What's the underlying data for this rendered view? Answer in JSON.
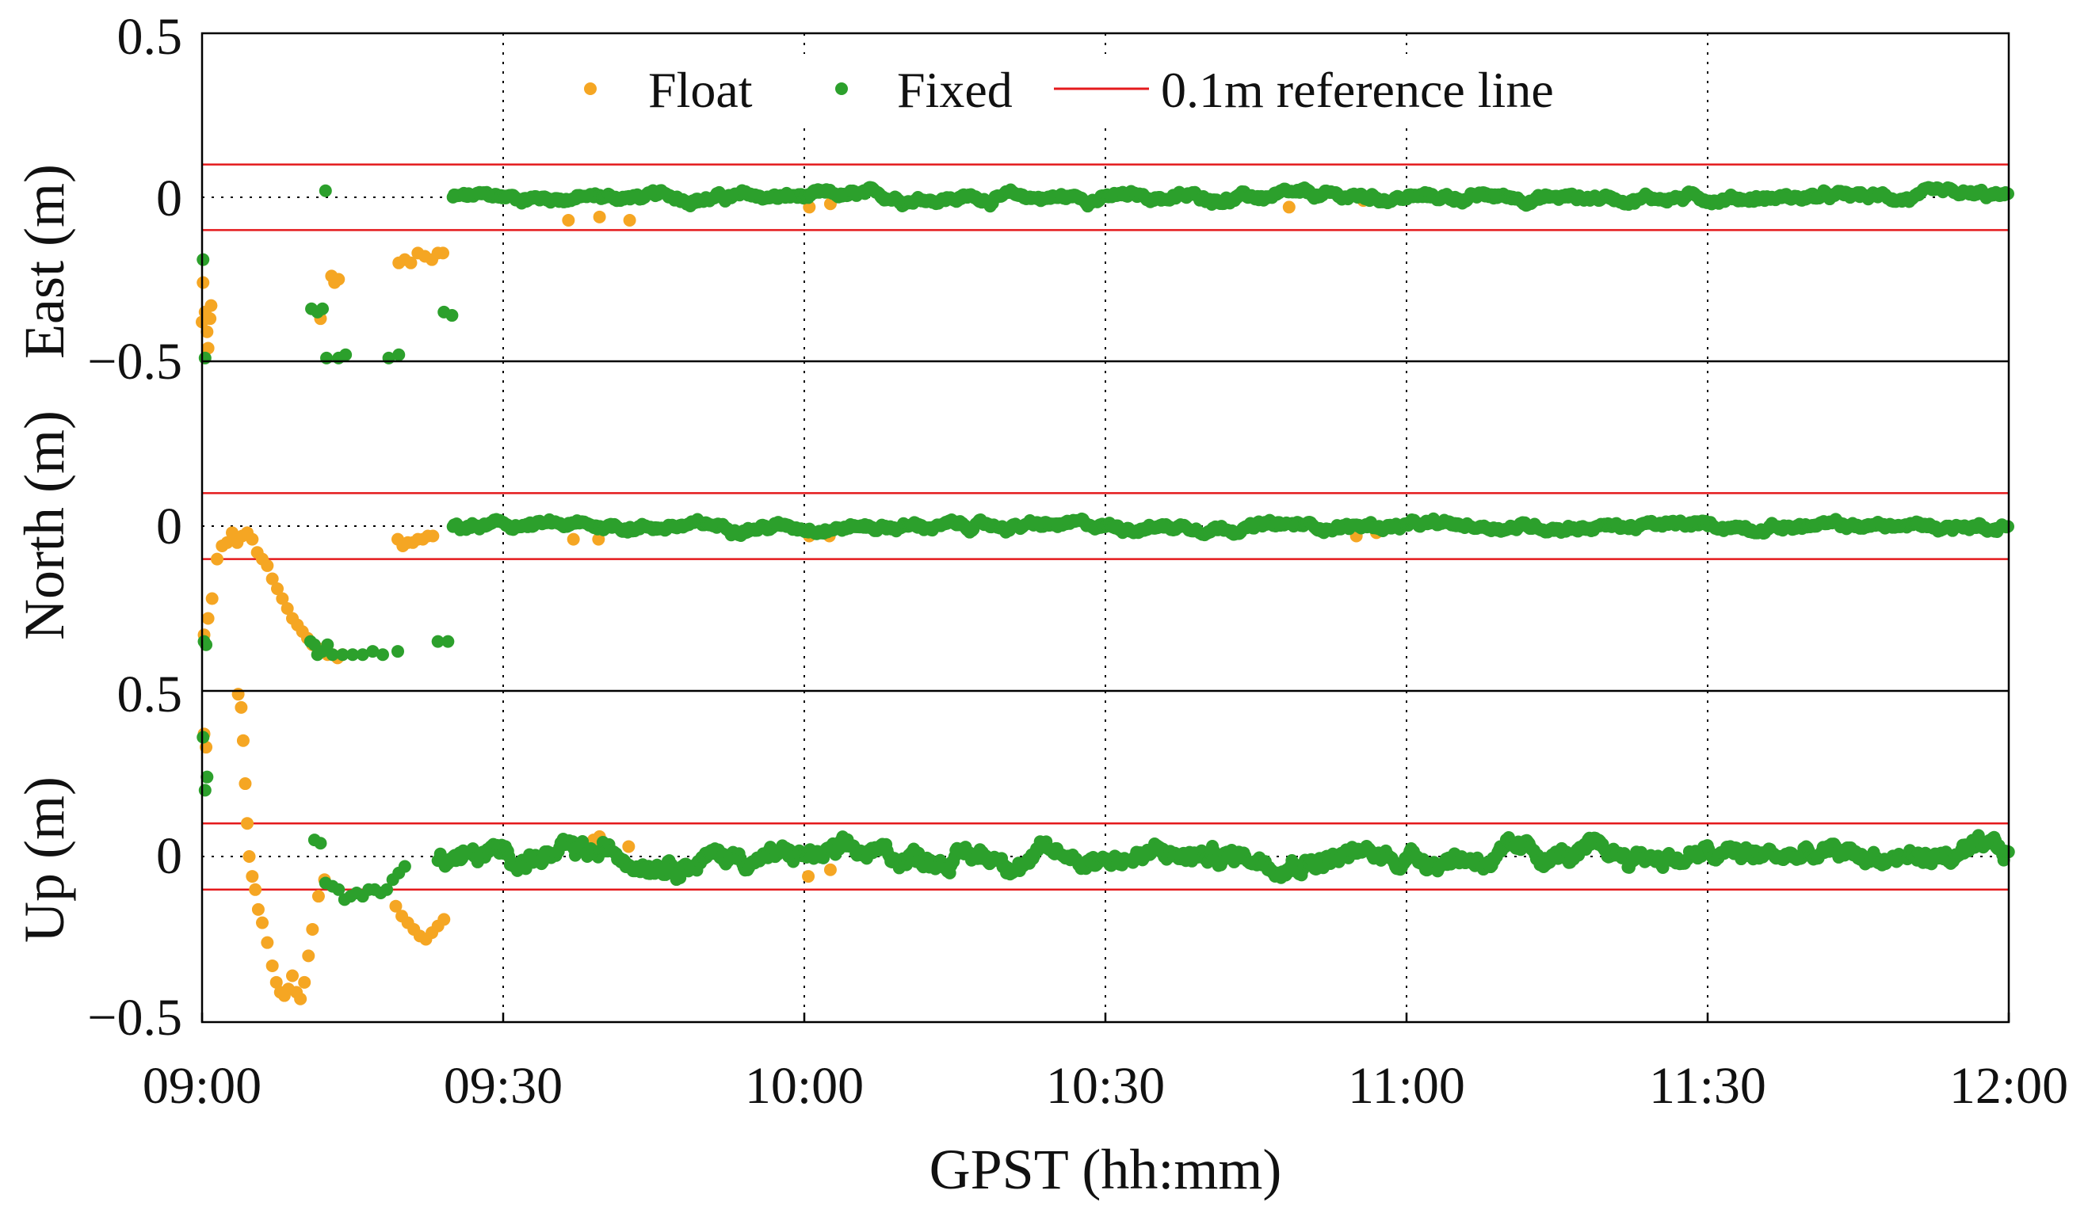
{
  "chart_data": {
    "type": "scatter",
    "x_label": "GPST (hh:mm)",
    "x_ticks": [
      "09:00",
      "09:30",
      "10:00",
      "10:30",
      "11:00",
      "11:30",
      "12:00"
    ],
    "x_tick_minutes": [
      0,
      30,
      60,
      90,
      120,
      150,
      180
    ],
    "x_range_minutes": [
      0,
      180
    ],
    "legend": {
      "placement": "top-center",
      "entries": [
        {
          "name": "Float",
          "kind": "marker",
          "color": "#f5a623"
        },
        {
          "name": "Fixed",
          "kind": "marker",
          "color": "#2ca02c"
        },
        {
          "name": "0.1m reference line",
          "kind": "line",
          "color": "#e41a1c"
        }
      ]
    },
    "colors": {
      "float": "#f5a623",
      "fixed": "#2ca02c",
      "reference": "#e41a1c",
      "axis": "#000000"
    },
    "reference_lines": [
      0.1,
      -0.1
    ],
    "panels": [
      {
        "id": "east",
        "ylabel": "East (m)",
        "ylim": [
          -0.5,
          0.5
        ],
        "y_tick_values": [
          0.5,
          0,
          -0.5
        ],
        "y_tick_labels": [
          "0.5",
          "0",
          "−0.5"
        ],
        "float_points": [
          [
            0.0,
            -0.38
          ],
          [
            0.1,
            -0.26
          ],
          [
            0.3,
            -0.35
          ],
          [
            0.5,
            -0.41
          ],
          [
            0.6,
            -0.46
          ],
          [
            0.8,
            -0.37
          ],
          [
            0.9,
            -0.33
          ],
          [
            11.8,
            -0.37
          ],
          [
            12.9,
            -0.24
          ],
          [
            13.2,
            -0.26
          ],
          [
            13.6,
            -0.25
          ],
          [
            19.6,
            -0.2
          ],
          [
            20.2,
            -0.19
          ],
          [
            20.8,
            -0.2
          ],
          [
            21.5,
            -0.17
          ],
          [
            22.2,
            -0.18
          ],
          [
            22.9,
            -0.19
          ],
          [
            23.5,
            -0.17
          ],
          [
            24.0,
            -0.17
          ],
          [
            36.5,
            -0.07
          ],
          [
            39.6,
            -0.06
          ],
          [
            42.6,
            -0.07
          ],
          [
            60.5,
            -0.03
          ],
          [
            62.6,
            -0.02
          ],
          [
            108.3,
            -0.03
          ],
          [
            115.7,
            -0.01
          ]
        ],
        "fixed_points": [
          [
            0.1,
            -0.19
          ],
          [
            0.3,
            -0.49
          ],
          [
            12.3,
            0.02
          ],
          [
            10.9,
            -0.34
          ],
          [
            11.5,
            -0.35
          ],
          [
            12.0,
            -0.34
          ],
          [
            12.4,
            -0.49
          ],
          [
            13.6,
            -0.49
          ],
          [
            14.3,
            -0.48
          ],
          [
            18.6,
            -0.49
          ],
          [
            19.6,
            -0.48
          ],
          [
            24.1,
            -0.35
          ],
          [
            24.9,
            -0.36
          ]
        ],
        "fixed_band": {
          "x_start": 25,
          "x_end": 180,
          "center": 0.0,
          "spread": 0.014
        }
      },
      {
        "id": "north",
        "ylabel": "North (m)",
        "ylim": [
          -0.5,
          0.5
        ],
        "y_tick_values": [
          0.5,
          0,
          -0.5
        ],
        "y_tick_labels": [
          "0.5",
          "0",
          "−0.5"
        ],
        "float_points": [
          [
            0.2,
            -0.33
          ],
          [
            0.6,
            -0.28
          ],
          [
            1.0,
            -0.22
          ],
          [
            1.5,
            -0.1
          ],
          [
            2.0,
            -0.06
          ],
          [
            2.5,
            -0.05
          ],
          [
            3.0,
            -0.02
          ],
          [
            3.5,
            -0.05
          ],
          [
            4.0,
            -0.03
          ],
          [
            4.5,
            -0.02
          ],
          [
            5.0,
            -0.04
          ],
          [
            5.5,
            -0.08
          ],
          [
            6.0,
            -0.1
          ],
          [
            6.5,
            -0.12
          ],
          [
            7.0,
            -0.16
          ],
          [
            7.5,
            -0.19
          ],
          [
            8.0,
            -0.22
          ],
          [
            8.5,
            -0.25
          ],
          [
            9.0,
            -0.28
          ],
          [
            9.5,
            -0.3
          ],
          [
            10.0,
            -0.32
          ],
          [
            10.5,
            -0.34
          ],
          [
            11.0,
            -0.36
          ],
          [
            11.5,
            -0.37
          ],
          [
            12.0,
            -0.38
          ],
          [
            12.5,
            -0.39
          ],
          [
            13.0,
            -0.39
          ],
          [
            13.5,
            -0.4
          ],
          [
            14.0,
            -0.39
          ],
          [
            19.5,
            -0.04
          ],
          [
            20.0,
            -0.06
          ],
          [
            20.5,
            -0.05
          ],
          [
            21.0,
            -0.05
          ],
          [
            21.5,
            -0.04
          ],
          [
            22.0,
            -0.04
          ],
          [
            22.5,
            -0.03
          ],
          [
            23.0,
            -0.03
          ],
          [
            37.0,
            -0.04
          ],
          [
            39.5,
            -0.04
          ],
          [
            60.5,
            -0.03
          ],
          [
            62.5,
            -0.03
          ],
          [
            115.0,
            -0.03
          ],
          [
            117.0,
            -0.02
          ]
        ],
        "fixed_points": [
          [
            0.2,
            -0.35
          ],
          [
            0.4,
            -0.36
          ],
          [
            10.8,
            -0.35
          ],
          [
            11.2,
            -0.36
          ],
          [
            11.5,
            -0.39
          ],
          [
            12.0,
            -0.38
          ],
          [
            12.5,
            -0.36
          ],
          [
            13.0,
            -0.39
          ],
          [
            14.0,
            -0.39
          ],
          [
            15.0,
            -0.39
          ],
          [
            16.0,
            -0.39
          ],
          [
            17.0,
            -0.38
          ],
          [
            18.0,
            -0.39
          ],
          [
            19.5,
            -0.38
          ],
          [
            23.5,
            -0.35
          ],
          [
            24.5,
            -0.35
          ]
        ],
        "fixed_band": {
          "x_start": 25,
          "x_end": 180,
          "center": 0.0,
          "spread": 0.013
        }
      },
      {
        "id": "up",
        "ylabel": "Up (m)",
        "ylim": [
          -0.5,
          0.5
        ],
        "y_tick_values": [
          0.5,
          0,
          -0.5
        ],
        "y_tick_labels": [
          "0.5",
          "0",
          "−0.5"
        ],
        "float_points": [
          [
            0.2,
            0.37
          ],
          [
            0.4,
            0.33
          ],
          [
            3.6,
            0.49
          ],
          [
            3.9,
            0.45
          ],
          [
            4.1,
            0.35
          ],
          [
            4.3,
            0.22
          ],
          [
            4.5,
            0.1
          ],
          [
            4.7,
            0.0
          ],
          [
            5.0,
            -0.06
          ],
          [
            5.3,
            -0.1
          ],
          [
            5.6,
            -0.16
          ],
          [
            6.0,
            -0.2
          ],
          [
            6.5,
            -0.26
          ],
          [
            7.0,
            -0.33
          ],
          [
            7.4,
            -0.38
          ],
          [
            7.8,
            -0.41
          ],
          [
            8.2,
            -0.42
          ],
          [
            8.6,
            -0.4
          ],
          [
            9.0,
            -0.36
          ],
          [
            9.4,
            -0.41
          ],
          [
            9.8,
            -0.43
          ],
          [
            10.2,
            -0.38
          ],
          [
            10.6,
            -0.3
          ],
          [
            11.0,
            -0.22
          ],
          [
            11.6,
            -0.12
          ],
          [
            12.2,
            -0.07
          ],
          [
            19.3,
            -0.15
          ],
          [
            19.9,
            -0.18
          ],
          [
            20.5,
            -0.2
          ],
          [
            21.1,
            -0.22
          ],
          [
            21.7,
            -0.24
          ],
          [
            22.3,
            -0.25
          ],
          [
            22.9,
            -0.23
          ],
          [
            23.5,
            -0.21
          ],
          [
            24.1,
            -0.19
          ],
          [
            36.5,
            0.04
          ],
          [
            39.0,
            0.05
          ],
          [
            39.6,
            0.06
          ],
          [
            42.5,
            0.03
          ],
          [
            60.4,
            -0.06
          ],
          [
            62.6,
            -0.04
          ],
          [
            108.2,
            -0.04
          ]
        ],
        "fixed_points": [
          [
            0.1,
            0.36
          ],
          [
            0.3,
            0.2
          ],
          [
            0.5,
            0.24
          ],
          [
            11.2,
            0.05
          ],
          [
            11.8,
            0.04
          ],
          [
            12.3,
            -0.08
          ],
          [
            13.0,
            -0.09
          ],
          [
            13.6,
            -0.1
          ],
          [
            14.2,
            -0.13
          ],
          [
            14.8,
            -0.12
          ],
          [
            15.4,
            -0.11
          ],
          [
            16.0,
            -0.12
          ],
          [
            16.6,
            -0.1
          ],
          [
            17.2,
            -0.1
          ],
          [
            17.8,
            -0.11
          ],
          [
            18.4,
            -0.1
          ],
          [
            19.0,
            -0.07
          ],
          [
            19.6,
            -0.05
          ],
          [
            20.2,
            -0.03
          ]
        ],
        "fixed_band": {
          "x_start": 23.5,
          "x_end": 180,
          "center": 0.0,
          "spread": 0.03
        }
      }
    ]
  }
}
